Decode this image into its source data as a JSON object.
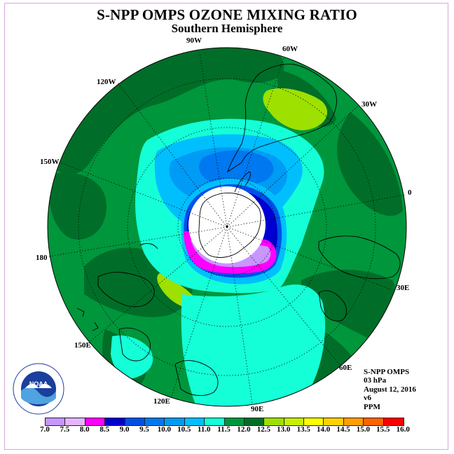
{
  "title": "S-NPP OMPS OZONE MIXING RATIO",
  "subtitle": "Southern Hemisphere",
  "lon_labels": [
    "90W",
    "60W",
    "30W",
    "0",
    "30E",
    "60E",
    "90E",
    "120E",
    "150E",
    "180",
    "150W",
    "120W"
  ],
  "info": {
    "instrument": "S-NPP OMPS",
    "level": "03 hPa",
    "date": "August 12, 2016",
    "version": "v6",
    "units": "PPM"
  },
  "colorbar": {
    "labels": [
      "7.0",
      "7.5",
      "8.0",
      "8.5",
      "9.0",
      "9.5",
      "10.0",
      "10.5",
      "11.0",
      "11.5",
      "12.0",
      "12.5",
      "13.0",
      "13.5",
      "14.0",
      "14.5",
      "15.0",
      "15.5",
      "16.0"
    ],
    "colors": [
      "#c896ff",
      "#e6b4ff",
      "#ff00ff",
      "#0000d2",
      "#0050e6",
      "#0078f0",
      "#009bf5",
      "#00bfff",
      "#14ffd7",
      "#00963c",
      "#006e28",
      "#9ee000",
      "#c8f000",
      "#ffff00",
      "#ffd200",
      "#ffa000",
      "#ff6400",
      "#ff0000",
      "#8b5a3c"
    ]
  }
}
